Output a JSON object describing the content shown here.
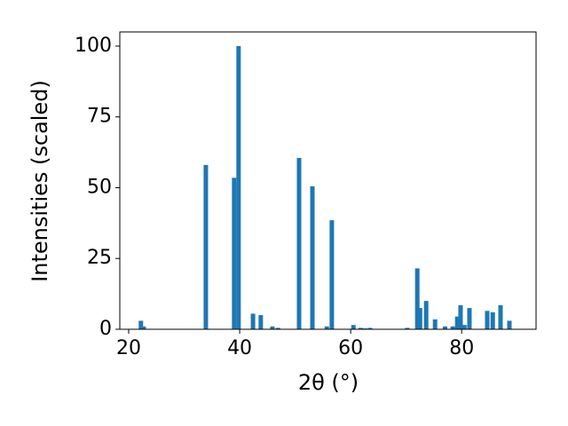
{
  "chart_data": {
    "type": "bar",
    "x_label": "2θ (°)",
    "y_label": "Intensities (scaled)",
    "x": [
      22.2,
      22.7,
      33.9,
      39.0,
      39.8,
      42.4,
      43.8,
      45.9,
      46.9,
      50.7,
      53.1,
      55.7,
      56.6,
      60.5,
      61.8,
      62.6,
      63.5,
      70.2,
      72.0,
      72.5,
      73.6,
      75.2,
      77.0,
      78.4,
      79.2,
      79.8,
      80.5,
      81.4,
      84.6,
      85.6,
      87.0,
      88.6
    ],
    "values": [
      3,
      1,
      58,
      53.5,
      100,
      5.5,
      5,
      1,
      0.5,
      60.5,
      50.5,
      1,
      38.5,
      1.5,
      0.5,
      0.3,
      0.5,
      0.5,
      21.5,
      7.5,
      10,
      3.5,
      1,
      1,
      4.5,
      8.5,
      1.5,
      7.5,
      6.5,
      6,
      8.5,
      3
    ],
    "color": "#1f77b4",
    "xlim": [
      18.4,
      93.4
    ],
    "xticks": [
      20,
      40,
      60,
      80
    ],
    "ylim": [
      0,
      105
    ],
    "yticks": [
      0,
      25,
      50,
      75,
      100
    ],
    "grid": false
  }
}
